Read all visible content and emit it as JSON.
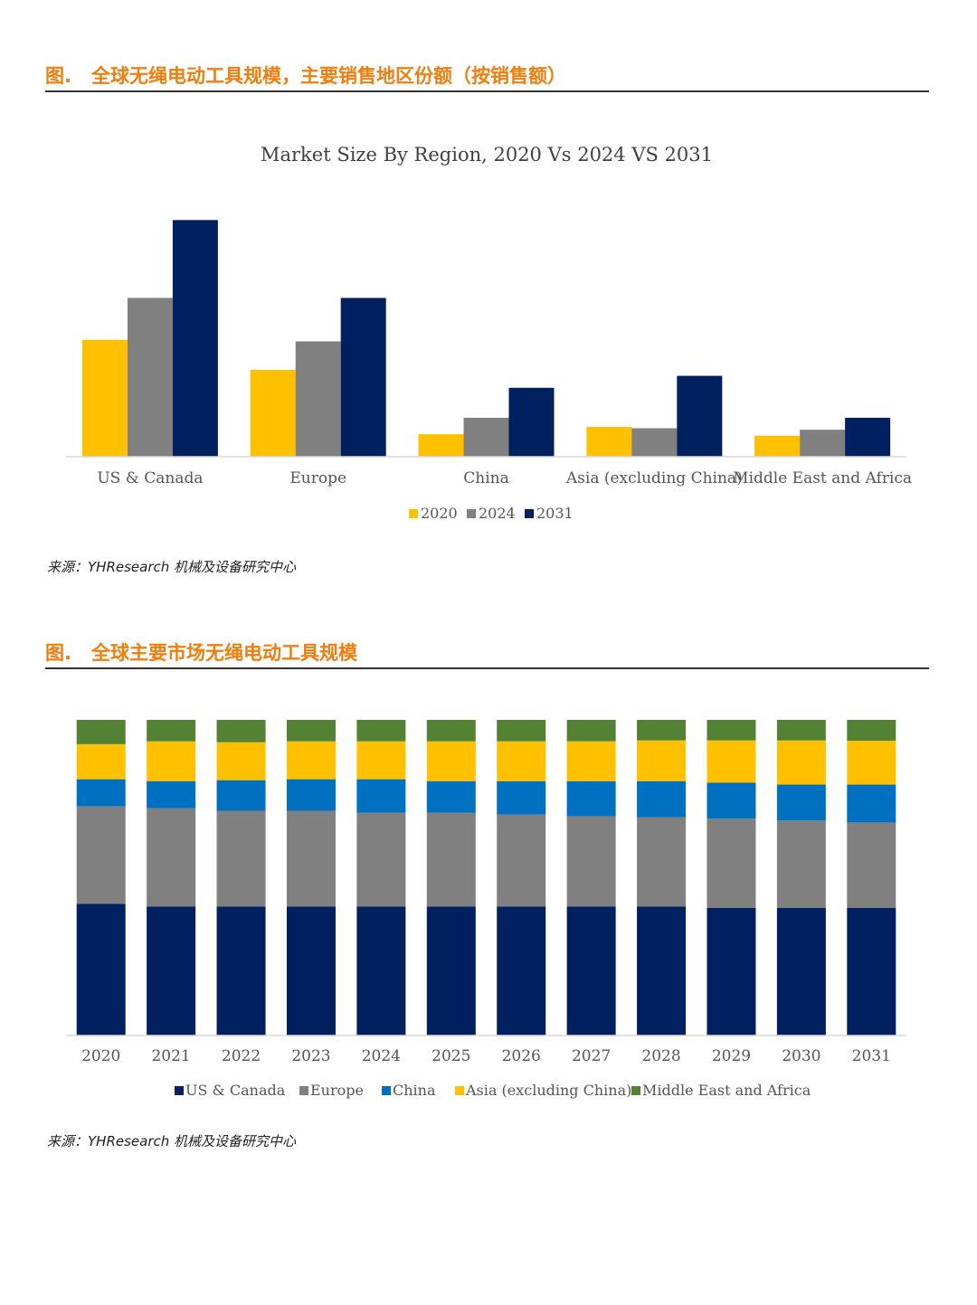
{
  "figure1": {
    "label": "图.",
    "heading": "全球无绳电动工具规模，主要销售地区份额（按销售额）",
    "source": "来源：YHResearch 机械及设备研究中心"
  },
  "figure2": {
    "label": "图.",
    "heading": "全球主要市场无绳电动工具规模",
    "source": "来源：YHResearch 机械及设备研究中心"
  },
  "colors": {
    "y2020": "#ffc000",
    "y2024": "#808080",
    "y2031": "#002060",
    "us": "#002060",
    "europe": "#808080",
    "china": "#0070c0",
    "asia": "#ffc000",
    "mea": "#548235"
  },
  "chart_data": [
    {
      "type": "bar",
      "title": "Market Size By Region, 2020 Vs 2024 VS 2031",
      "categories": [
        "US & Canada",
        "Europe",
        "China",
        "Asia (excluding China)",
        "Middle East and Africa"
      ],
      "series": [
        {
          "name": "2020",
          "values": [
            39,
            29,
            7.5,
            10,
            7
          ],
          "color": "#ffc000"
        },
        {
          "name": "2024",
          "values": [
            53,
            38.5,
            13,
            9.5,
            9
          ],
          "color": "#808080"
        },
        {
          "name": "2031",
          "values": [
            79,
            53,
            23,
            27,
            13
          ],
          "color": "#002060"
        }
      ],
      "ylim": [
        0,
        80
      ],
      "grid": false,
      "legend": "bottom"
    },
    {
      "type": "bar",
      "stacked": "percent",
      "categories": [
        "2020",
        "2021",
        "2022",
        "2023",
        "2024",
        "2025",
        "2026",
        "2027",
        "2028",
        "2029",
        "2030",
        "2031"
      ],
      "series": [
        {
          "name": "US & Canada",
          "color": "#002060",
          "values": [
            41.7,
            40.9,
            40.9,
            40.9,
            40.9,
            40.9,
            40.9,
            40.9,
            40.9,
            40.4,
            40.4,
            40.4
          ]
        },
        {
          "name": "Europe",
          "color": "#808080",
          "values": [
            30.9,
            31.1,
            30.3,
            30.3,
            29.7,
            29.7,
            29.1,
            28.6,
            28.3,
            28.3,
            27.7,
            27.1
          ]
        },
        {
          "name": "China",
          "color": "#0070c0",
          "values": [
            8.6,
            8.6,
            9.7,
            10.0,
            10.6,
            10.0,
            10.6,
            11.1,
            11.4,
            11.4,
            11.4,
            12.0
          ]
        },
        {
          "name": "Asia (excluding China)",
          "color": "#ffc000",
          "values": [
            11.1,
            12.6,
            12.0,
            12.0,
            12.0,
            12.6,
            12.6,
            12.6,
            12.9,
            13.4,
            14.0,
            13.9
          ]
        },
        {
          "name": "Middle East and Africa",
          "color": "#548235",
          "values": [
            7.7,
            6.8,
            7.1,
            6.8,
            6.8,
            6.8,
            6.8,
            6.8,
            6.5,
            6.5,
            6.5,
            6.6
          ]
        }
      ],
      "ylim": [
        0,
        100
      ],
      "grid": false,
      "legend": "bottom"
    }
  ]
}
